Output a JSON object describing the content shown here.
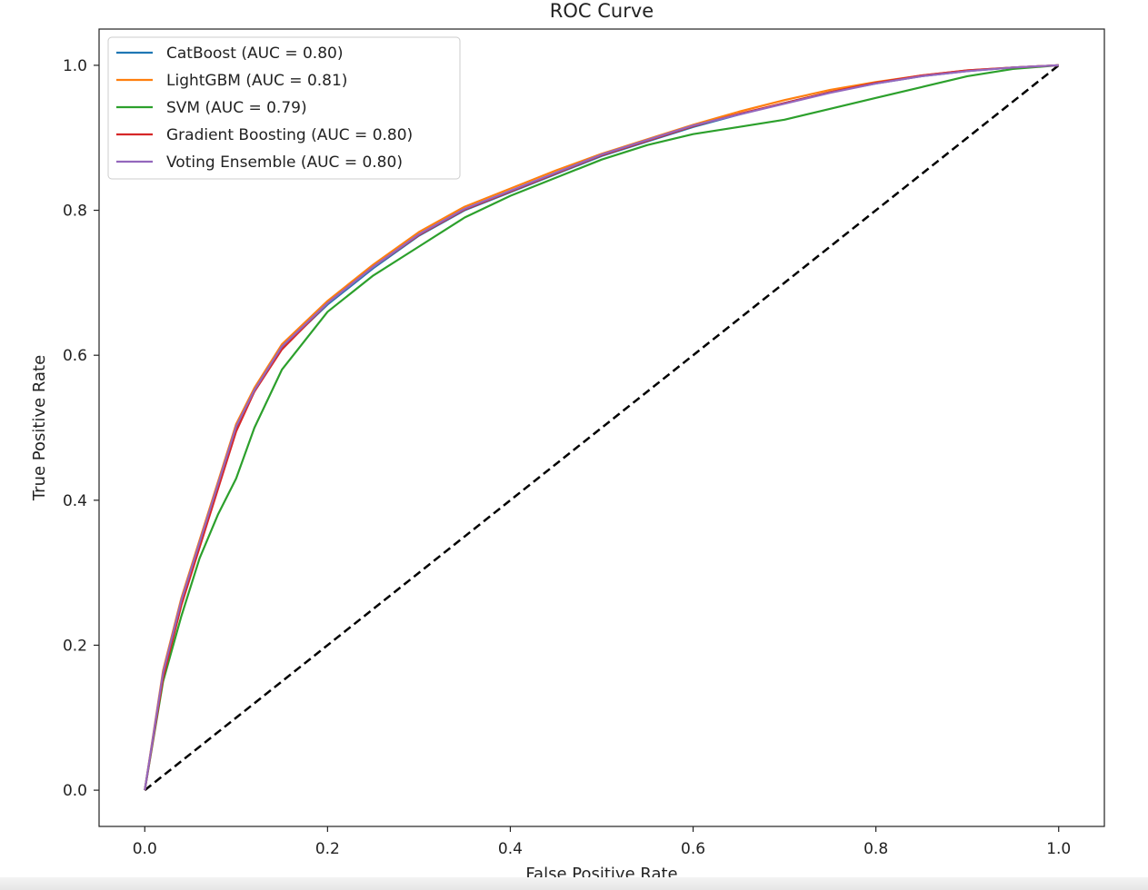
{
  "chart_data": {
    "type": "line",
    "title": "ROC Curve",
    "xlabel": "False Positive Rate",
    "ylabel": "True Positive Rate",
    "xlim": [
      -0.05,
      1.05
    ],
    "ylim": [
      -0.05,
      1.05
    ],
    "xticks": [
      "0.0",
      "0.2",
      "0.4",
      "0.6",
      "0.8",
      "1.0"
    ],
    "yticks": [
      "0.0",
      "0.2",
      "0.4",
      "0.6",
      "0.8",
      "1.0"
    ],
    "grid": false,
    "legend_position": "top-left",
    "series": [
      {
        "name": "CatBoost (AUC = 0.80)",
        "color": "#1f77b4",
        "x": [
          0,
          0.02,
          0.04,
          0.06,
          0.08,
          0.1,
          0.12,
          0.15,
          0.2,
          0.25,
          0.3,
          0.35,
          0.4,
          0.45,
          0.5,
          0.55,
          0.6,
          0.65,
          0.7,
          0.75,
          0.8,
          0.85,
          0.9,
          0.95,
          1.0
        ],
        "y": [
          0,
          0.16,
          0.26,
          0.34,
          0.42,
          0.5,
          0.55,
          0.61,
          0.67,
          0.72,
          0.765,
          0.8,
          0.825,
          0.85,
          0.875,
          0.895,
          0.915,
          0.932,
          0.948,
          0.963,
          0.975,
          0.985,
          0.992,
          0.997,
          1.0
        ]
      },
      {
        "name": "LightGBM (AUC = 0.81)",
        "color": "#ff7f0e",
        "x": [
          0,
          0.02,
          0.04,
          0.06,
          0.08,
          0.1,
          0.12,
          0.15,
          0.2,
          0.25,
          0.3,
          0.35,
          0.4,
          0.45,
          0.5,
          0.55,
          0.6,
          0.65,
          0.7,
          0.75,
          0.8,
          0.85,
          0.9,
          0.95,
          1.0
        ],
        "y": [
          0,
          0.165,
          0.265,
          0.345,
          0.425,
          0.505,
          0.555,
          0.615,
          0.675,
          0.725,
          0.77,
          0.805,
          0.83,
          0.855,
          0.878,
          0.898,
          0.918,
          0.936,
          0.952,
          0.966,
          0.977,
          0.986,
          0.993,
          0.997,
          1.0
        ]
      },
      {
        "name": "SVM (AUC = 0.79)",
        "color": "#2ca02c",
        "x": [
          0,
          0.02,
          0.04,
          0.06,
          0.08,
          0.1,
          0.12,
          0.15,
          0.2,
          0.25,
          0.3,
          0.35,
          0.4,
          0.45,
          0.5,
          0.55,
          0.6,
          0.65,
          0.7,
          0.75,
          0.8,
          0.85,
          0.9,
          0.95,
          1.0
        ],
        "y": [
          0,
          0.15,
          0.24,
          0.32,
          0.38,
          0.43,
          0.5,
          0.58,
          0.66,
          0.71,
          0.75,
          0.79,
          0.82,
          0.845,
          0.87,
          0.89,
          0.905,
          0.915,
          0.925,
          0.94,
          0.955,
          0.97,
          0.985,
          0.995,
          1.0
        ]
      },
      {
        "name": "Gradient Boosting (AUC = 0.80)",
        "color": "#d62728",
        "x": [
          0,
          0.02,
          0.04,
          0.06,
          0.08,
          0.1,
          0.12,
          0.15,
          0.2,
          0.25,
          0.3,
          0.35,
          0.4,
          0.45,
          0.5,
          0.55,
          0.6,
          0.65,
          0.7,
          0.75,
          0.8,
          0.85,
          0.9,
          0.95,
          1.0
        ],
        "y": [
          0,
          0.155,
          0.255,
          0.335,
          0.415,
          0.495,
          0.55,
          0.608,
          0.672,
          0.722,
          0.766,
          0.801,
          0.826,
          0.851,
          0.876,
          0.896,
          0.916,
          0.933,
          0.948,
          0.963,
          0.976,
          0.986,
          0.993,
          0.997,
          1.0
        ]
      },
      {
        "name": "Voting Ensemble (AUC = 0.80)",
        "color": "#9467bd",
        "x": [
          0,
          0.02,
          0.04,
          0.06,
          0.08,
          0.1,
          0.12,
          0.15,
          0.2,
          0.25,
          0.3,
          0.35,
          0.4,
          0.45,
          0.5,
          0.55,
          0.6,
          0.65,
          0.7,
          0.75,
          0.8,
          0.85,
          0.9,
          0.95,
          1.0
        ],
        "y": [
          0,
          0.162,
          0.262,
          0.342,
          0.422,
          0.502,
          0.552,
          0.612,
          0.672,
          0.722,
          0.767,
          0.802,
          0.827,
          0.852,
          0.877,
          0.897,
          0.917,
          0.932,
          0.947,
          0.962,
          0.975,
          0.985,
          0.992,
          0.997,
          1.0
        ]
      }
    ],
    "reference_line": {
      "x": [
        0,
        1
      ],
      "y": [
        0,
        1
      ],
      "color": "#000000",
      "style": "dashed"
    }
  }
}
